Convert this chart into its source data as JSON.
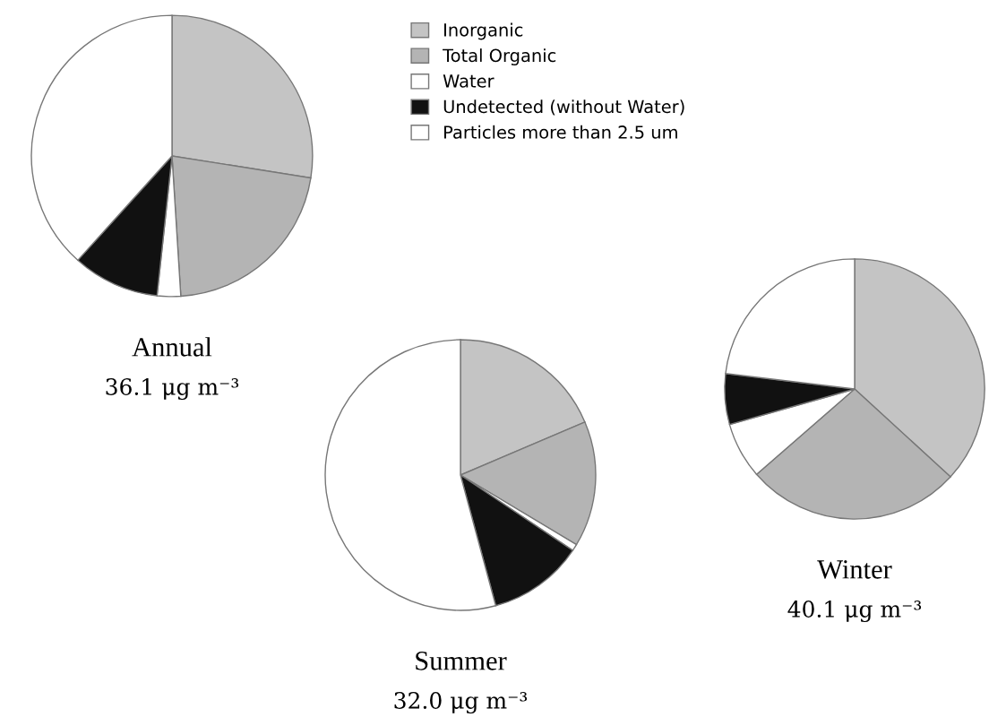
{
  "chart_data": [
    {
      "type": "pie",
      "title": "Summer",
      "subtitle": "32.0 μg m⁻³",
      "categories": [
        "Inorganic",
        "Total Organic",
        "Water",
        "Undetected (without Water)",
        "Particles more than 2.5 um"
      ],
      "values": [
        18.6,
        15.0,
        0.8,
        11.4,
        54.2
      ],
      "colors": [
        "#c4c4c4",
        "#b4b4b4",
        "#ffffff",
        "#111111",
        "#ffffff"
      ],
      "legend": "top"
    },
    {
      "type": "pie",
      "title": "Winter",
      "subtitle": "40.1 μg m⁻³",
      "categories": [
        null,
        null,
        null,
        null,
        null
      ],
      "values": [
        36.8,
        26.8,
        7.0,
        6.3,
        23.1
      ],
      "colors": [
        "#c4c4c4",
        "#b4b4b4",
        "#ffffff",
        "#111111",
        "#ffffff"
      ]
    },
    {
      "type": "pie",
      "title": "Annual",
      "subtitle": "36.1 μg m⁻³",
      "categories": [
        null,
        null,
        null,
        null,
        null
      ],
      "values": [
        27.5,
        21.5,
        2.7,
        10.0,
        38.3
      ],
      "colors": [
        "#c4c4c4",
        "#b4b4b4",
        "#ffffff",
        "#111111",
        "#ffffff"
      ]
    }
  ]
}
